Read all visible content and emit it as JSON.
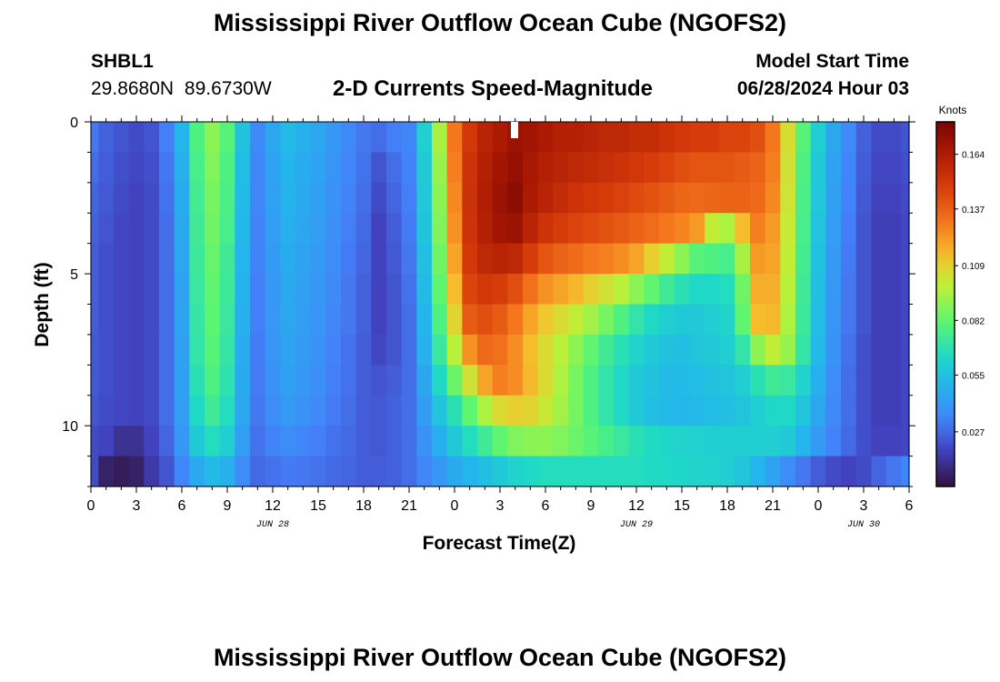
{
  "page": {
    "title": "Mississippi River Outflow Ocean Cube (NGOFS2)",
    "title_repeat": "Mississippi River Outflow Ocean Cube (NGOFS2)",
    "station": "SHBL1",
    "coords": "29.8680N  89.6730W",
    "subtitle": "2-D Currents Speed-Magnitude",
    "model_start_label": "Model Start Time",
    "model_start_value": "06/28/2024 Hour 03"
  },
  "chart_data": {
    "type": "heatmap",
    "title": "2-D Currents Speed-Magnitude",
    "xlabel": "Forecast Time(Z)",
    "ylabel": "Depth (ft)",
    "x_hours_range": [
      0,
      54
    ],
    "x_ticks": [
      {
        "h": 0,
        "label": "0"
      },
      {
        "h": 3,
        "label": "3"
      },
      {
        "h": 6,
        "label": "6"
      },
      {
        "h": 9,
        "label": "9"
      },
      {
        "h": 12,
        "label": "12"
      },
      {
        "h": 15,
        "label": "15"
      },
      {
        "h": 18,
        "label": "18"
      },
      {
        "h": 21,
        "label": "21"
      },
      {
        "h": 24,
        "label": "0"
      },
      {
        "h": 27,
        "label": "3"
      },
      {
        "h": 30,
        "label": "6"
      },
      {
        "h": 33,
        "label": "9"
      },
      {
        "h": 36,
        "label": "12"
      },
      {
        "h": 39,
        "label": "15"
      },
      {
        "h": 42,
        "label": "18"
      },
      {
        "h": 45,
        "label": "21"
      },
      {
        "h": 48,
        "label": "0"
      },
      {
        "h": 51,
        "label": "3"
      },
      {
        "h": 54,
        "label": "6"
      }
    ],
    "date_labels": [
      {
        "h": 12,
        "label": "JUN 28"
      },
      {
        "h": 36,
        "label": "JUN 29"
      },
      {
        "h": 51,
        "label": "JUN 30"
      }
    ],
    "depth_range_ft": [
      0,
      12
    ],
    "y_ticks": [
      {
        "d": 0,
        "label": "0"
      },
      {
        "d": 5,
        "label": "5"
      },
      {
        "d": 10,
        "label": "10"
      }
    ],
    "colorbar": {
      "title": "Knots",
      "range": [
        0,
        0.18
      ],
      "ticks": [
        "0.164",
        "0.137",
        "0.109",
        "0.082",
        "0.055",
        "0.027"
      ],
      "tick_values": [
        0.164,
        0.137,
        0.109,
        0.082,
        0.055,
        0.027
      ]
    },
    "grid": false,
    "depth_levels_ft": [
      0.5,
      1.5,
      2.5,
      3.5,
      4.5,
      5.5,
      6.5,
      7.5,
      8.5,
      9.5,
      10.5,
      11.5
    ],
    "time_step_hours": 1,
    "speed_knots": [
      [
        0.03,
        0.025,
        0.022,
        0.02,
        0.022,
        0.032,
        0.05,
        0.078,
        0.09,
        0.08,
        0.055,
        0.035,
        0.045,
        0.052,
        0.048,
        0.045,
        0.04,
        0.035,
        0.03,
        0.028,
        0.032,
        0.034,
        0.06,
        0.095,
        0.13,
        0.15,
        0.16,
        0.165,
        0.17,
        0.168,
        0.165,
        0.162,
        0.162,
        0.16,
        0.158,
        0.158,
        0.155,
        0.155,
        0.152,
        0.15,
        0.148,
        0.148,
        0.145,
        0.145,
        0.142,
        0.13,
        0.105,
        0.08,
        0.06,
        0.045,
        0.035,
        0.025,
        0.02,
        0.02,
        0.022
      ],
      [
        0.028,
        0.024,
        0.021,
        0.019,
        0.021,
        0.03,
        0.048,
        0.076,
        0.088,
        0.078,
        0.053,
        0.034,
        0.044,
        0.05,
        0.047,
        0.044,
        0.039,
        0.034,
        0.029,
        0.022,
        0.028,
        0.033,
        0.058,
        0.092,
        0.128,
        0.152,
        0.162,
        0.168,
        0.172,
        0.166,
        0.162,
        0.16,
        0.158,
        0.156,
        0.154,
        0.152,
        0.15,
        0.148,
        0.145,
        0.142,
        0.14,
        0.14,
        0.14,
        0.138,
        0.136,
        0.128,
        0.104,
        0.078,
        0.058,
        0.044,
        0.034,
        0.024,
        0.019,
        0.019,
        0.021
      ],
      [
        0.026,
        0.023,
        0.02,
        0.018,
        0.02,
        0.029,
        0.047,
        0.075,
        0.086,
        0.077,
        0.052,
        0.034,
        0.043,
        0.049,
        0.046,
        0.043,
        0.038,
        0.033,
        0.028,
        0.02,
        0.026,
        0.032,
        0.057,
        0.09,
        0.126,
        0.153,
        0.163,
        0.17,
        0.174,
        0.165,
        0.16,
        0.156,
        0.152,
        0.15,
        0.148,
        0.146,
        0.143,
        0.141,
        0.138,
        0.135,
        0.134,
        0.135,
        0.136,
        0.136,
        0.134,
        0.126,
        0.103,
        0.077,
        0.057,
        0.043,
        0.033,
        0.023,
        0.018,
        0.018,
        0.02
      ],
      [
        0.025,
        0.022,
        0.019,
        0.018,
        0.02,
        0.028,
        0.046,
        0.074,
        0.085,
        0.076,
        0.051,
        0.033,
        0.042,
        0.048,
        0.045,
        0.042,
        0.037,
        0.032,
        0.027,
        0.018,
        0.024,
        0.031,
        0.056,
        0.088,
        0.124,
        0.152,
        0.162,
        0.168,
        0.17,
        0.16,
        0.152,
        0.148,
        0.145,
        0.143,
        0.141,
        0.139,
        0.136,
        0.133,
        0.13,
        0.127,
        0.122,
        0.1,
        0.096,
        0.115,
        0.128,
        0.122,
        0.101,
        0.076,
        0.056,
        0.042,
        0.032,
        0.022,
        0.017,
        0.017,
        0.019
      ],
      [
        0.024,
        0.021,
        0.019,
        0.018,
        0.02,
        0.028,
        0.045,
        0.073,
        0.083,
        0.074,
        0.05,
        0.033,
        0.041,
        0.047,
        0.044,
        0.041,
        0.036,
        0.031,
        0.026,
        0.018,
        0.023,
        0.03,
        0.054,
        0.085,
        0.12,
        0.15,
        0.158,
        0.16,
        0.158,
        0.148,
        0.14,
        0.136,
        0.133,
        0.13,
        0.128,
        0.125,
        0.12,
        0.11,
        0.1,
        0.09,
        0.08,
        0.078,
        0.076,
        0.095,
        0.122,
        0.12,
        0.1,
        0.075,
        0.055,
        0.041,
        0.031,
        0.022,
        0.017,
        0.017,
        0.019
      ],
      [
        0.024,
        0.021,
        0.019,
        0.018,
        0.02,
        0.028,
        0.044,
        0.072,
        0.082,
        0.073,
        0.049,
        0.032,
        0.04,
        0.046,
        0.043,
        0.04,
        0.035,
        0.03,
        0.025,
        0.018,
        0.022,
        0.029,
        0.052,
        0.082,
        0.115,
        0.145,
        0.15,
        0.148,
        0.142,
        0.132,
        0.124,
        0.12,
        0.116,
        0.11,
        0.104,
        0.098,
        0.09,
        0.082,
        0.074,
        0.068,
        0.064,
        0.064,
        0.066,
        0.085,
        0.118,
        0.118,
        0.098,
        0.074,
        0.054,
        0.04,
        0.03,
        0.022,
        0.017,
        0.017,
        0.019
      ],
      [
        0.024,
        0.021,
        0.019,
        0.018,
        0.02,
        0.028,
        0.044,
        0.071,
        0.081,
        0.072,
        0.048,
        0.032,
        0.04,
        0.045,
        0.042,
        0.039,
        0.034,
        0.03,
        0.025,
        0.018,
        0.022,
        0.028,
        0.05,
        0.078,
        0.108,
        0.138,
        0.142,
        0.138,
        0.13,
        0.12,
        0.112,
        0.106,
        0.1,
        0.094,
        0.086,
        0.078,
        0.07,
        0.064,
        0.06,
        0.058,
        0.058,
        0.06,
        0.062,
        0.082,
        0.115,
        0.116,
        0.096,
        0.073,
        0.053,
        0.039,
        0.03,
        0.022,
        0.017,
        0.017,
        0.019
      ],
      [
        0.023,
        0.021,
        0.019,
        0.018,
        0.02,
        0.028,
        0.043,
        0.07,
        0.08,
        0.071,
        0.047,
        0.031,
        0.039,
        0.044,
        0.041,
        0.038,
        0.033,
        0.029,
        0.024,
        0.019,
        0.022,
        0.028,
        0.048,
        0.072,
        0.098,
        0.124,
        0.134,
        0.132,
        0.125,
        0.115,
        0.106,
        0.098,
        0.09,
        0.082,
        0.074,
        0.068,
        0.062,
        0.058,
        0.055,
        0.054,
        0.056,
        0.058,
        0.06,
        0.07,
        0.09,
        0.1,
        0.092,
        0.071,
        0.052,
        0.038,
        0.029,
        0.021,
        0.017,
        0.017,
        0.019
      ],
      [
        0.023,
        0.021,
        0.019,
        0.018,
        0.02,
        0.028,
        0.043,
        0.068,
        0.078,
        0.069,
        0.046,
        0.031,
        0.038,
        0.043,
        0.04,
        0.037,
        0.032,
        0.029,
        0.024,
        0.022,
        0.024,
        0.028,
        0.045,
        0.064,
        0.084,
        0.104,
        0.12,
        0.128,
        0.125,
        0.116,
        0.106,
        0.096,
        0.086,
        0.078,
        0.07,
        0.064,
        0.058,
        0.055,
        0.052,
        0.052,
        0.053,
        0.055,
        0.056,
        0.06,
        0.068,
        0.074,
        0.072,
        0.062,
        0.048,
        0.036,
        0.028,
        0.021,
        0.017,
        0.017,
        0.019
      ],
      [
        0.022,
        0.02,
        0.019,
        0.018,
        0.02,
        0.028,
        0.042,
        0.064,
        0.074,
        0.066,
        0.045,
        0.03,
        0.036,
        0.041,
        0.038,
        0.035,
        0.031,
        0.028,
        0.024,
        0.023,
        0.025,
        0.028,
        0.042,
        0.056,
        0.068,
        0.082,
        0.096,
        0.106,
        0.11,
        0.108,
        0.102,
        0.094,
        0.086,
        0.078,
        0.07,
        0.064,
        0.058,
        0.054,
        0.052,
        0.051,
        0.052,
        0.053,
        0.054,
        0.056,
        0.06,
        0.064,
        0.064,
        0.056,
        0.045,
        0.035,
        0.028,
        0.021,
        0.017,
        0.017,
        0.019
      ],
      [
        0.02,
        0.018,
        0.012,
        0.012,
        0.018,
        0.026,
        0.04,
        0.058,
        0.066,
        0.06,
        0.042,
        0.029,
        0.033,
        0.036,
        0.034,
        0.032,
        0.029,
        0.027,
        0.024,
        0.023,
        0.025,
        0.028,
        0.038,
        0.048,
        0.058,
        0.066,
        0.074,
        0.082,
        0.088,
        0.09,
        0.09,
        0.088,
        0.084,
        0.08,
        0.076,
        0.072,
        0.068,
        0.065,
        0.063,
        0.062,
        0.061,
        0.06,
        0.06,
        0.06,
        0.06,
        0.06,
        0.058,
        0.05,
        0.041,
        0.033,
        0.027,
        0.021,
        0.018,
        0.018,
        0.019
      ],
      [
        0.02,
        0.006,
        0.004,
        0.006,
        0.015,
        0.022,
        0.034,
        0.046,
        0.052,
        0.048,
        0.036,
        0.027,
        0.029,
        0.031,
        0.03,
        0.029,
        0.027,
        0.026,
        0.024,
        0.024,
        0.025,
        0.028,
        0.034,
        0.04,
        0.046,
        0.05,
        0.054,
        0.058,
        0.062,
        0.064,
        0.066,
        0.066,
        0.066,
        0.066,
        0.066,
        0.066,
        0.066,
        0.065,
        0.064,
        0.063,
        0.062,
        0.062,
        0.06,
        0.056,
        0.05,
        0.044,
        0.036,
        0.03,
        0.024,
        0.02,
        0.018,
        0.02,
        0.026,
        0.03,
        0.034
      ]
    ]
  }
}
